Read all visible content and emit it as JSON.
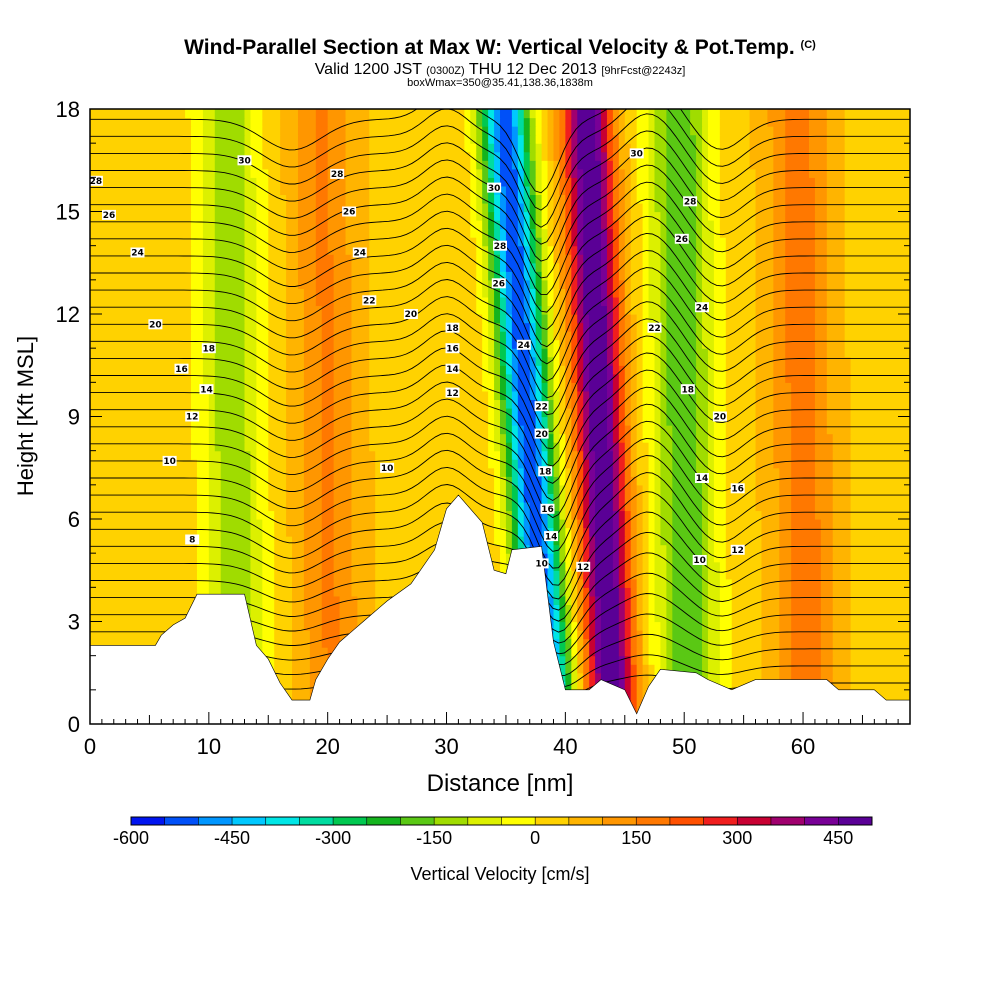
{
  "title": {
    "main": "Wind-Parallel Section at Max W: Vertical Velocity & Pot.Temp.",
    "copyright": "(C)",
    "valid_a": "Valid 1200 JST",
    "valid_z": "(0300Z)",
    "valid_b": "THU 12 Dec 2013",
    "forecast": "[9hrFcst@2243z]",
    "box": "boxWmax=350@35.41,138.36,1838m"
  },
  "chart_data": {
    "type": "heatmap",
    "xlabel": "Distance [nm]",
    "ylabel": "Height [Kft MSL]",
    "xlim": [
      0,
      69
    ],
    "ylim": [
      0,
      18
    ],
    "x_ticks": [
      "0",
      "10",
      "20",
      "30",
      "40",
      "50",
      "60"
    ],
    "y_ticks": [
      "0",
      "3",
      "6",
      "9",
      "12",
      "15",
      "18"
    ],
    "colorbar": {
      "label": "Vertical Velocity [cm/s]",
      "tick_labels": [
        "-600",
        "-450",
        "-300",
        "-150",
        "0",
        "150",
        "300",
        "450"
      ],
      "levels": [
        -600,
        -550,
        -500,
        -450,
        -400,
        -350,
        -300,
        -250,
        -200,
        -150,
        -100,
        -50,
        0,
        50,
        100,
        150,
        200,
        250,
        300,
        350,
        400,
        450,
        500
      ],
      "colors": [
        "#0014f0",
        "#0050f8",
        "#0096ff",
        "#00c8ff",
        "#00e6e6",
        "#00dca0",
        "#00c850",
        "#14b41e",
        "#5ac814",
        "#a0dc00",
        "#dcf000",
        "#ffff00",
        "#ffd200",
        "#ffb400",
        "#ff9600",
        "#ff7800",
        "#ff5000",
        "#f01e1e",
        "#c80032",
        "#a0006e",
        "#780096",
        "#5a0096"
      ]
    },
    "updraft_bands": [
      {
        "center_x": 20,
        "peak_w": 120
      },
      {
        "center_x": 43,
        "peak_w": 480
      },
      {
        "center_x": 60,
        "peak_w": 140
      }
    ],
    "downdraft_bands": [
      {
        "center_x": 12,
        "peak_w": -170
      },
      {
        "center_x": 37,
        "peak_w": -580
      },
      {
        "center_x": 50,
        "peak_w": -230
      }
    ],
    "terrain_kft": [
      [
        0,
        2.3
      ],
      [
        5.5,
        2.3
      ],
      [
        6,
        2.6
      ],
      [
        7,
        2.9
      ],
      [
        8,
        3.1
      ],
      [
        9,
        3.8
      ],
      [
        13,
        3.8
      ],
      [
        14,
        2.3
      ],
      [
        15,
        1.9
      ],
      [
        16,
        1.2
      ],
      [
        17,
        0.7
      ],
      [
        18.5,
        0.7
      ],
      [
        19,
        1.3
      ],
      [
        20,
        1.9
      ],
      [
        21,
        2.4
      ],
      [
        22,
        2.7
      ],
      [
        23,
        3.0
      ],
      [
        25,
        3.6
      ],
      [
        27,
        4.1
      ],
      [
        29,
        5.1
      ],
      [
        30,
        6.3
      ],
      [
        31,
        6.7
      ],
      [
        33,
        5.9
      ],
      [
        34,
        4.5
      ],
      [
        35,
        4.4
      ],
      [
        35.5,
        5.1
      ],
      [
        38,
        5.2
      ],
      [
        38.5,
        3.8
      ],
      [
        39,
        2.4
      ],
      [
        40,
        1.0
      ],
      [
        42,
        1.0
      ],
      [
        43,
        1.3
      ],
      [
        45,
        1.0
      ],
      [
        46,
        0.3
      ],
      [
        47,
        1.1
      ],
      [
        48,
        1.6
      ],
      [
        51,
        1.5
      ],
      [
        52,
        1.3
      ],
      [
        54,
        1.0
      ],
      [
        56,
        1.3
      ],
      [
        62,
        1.3
      ],
      [
        63,
        1.0
      ],
      [
        66,
        1.0
      ],
      [
        67,
        0.7
      ],
      [
        69,
        0.7
      ]
    ],
    "theta_contour_labels": [
      {
        "text": "30",
        "x": 13,
        "y": 16.5
      },
      {
        "text": "28",
        "x": 0.5,
        "y": 15.9
      },
      {
        "text": "26",
        "x": 1.6,
        "y": 14.9
      },
      {
        "text": "24",
        "x": 4.0,
        "y": 13.8
      },
      {
        "text": "20",
        "x": 5.5,
        "y": 11.7
      },
      {
        "text": "18",
        "x": 10.0,
        "y": 11.0
      },
      {
        "text": "16",
        "x": 7.7,
        "y": 10.4
      },
      {
        "text": "14",
        "x": 9.8,
        "y": 9.8
      },
      {
        "text": "12",
        "x": 8.6,
        "y": 9.0
      },
      {
        "text": "10",
        "x": 6.7,
        "y": 7.7
      },
      {
        "text": "8",
        "x": 8.6,
        "y": 5.4
      },
      {
        "text": "28",
        "x": 20.8,
        "y": 16.1
      },
      {
        "text": "26",
        "x": 21.8,
        "y": 15.0
      },
      {
        "text": "24",
        "x": 22.7,
        "y": 13.8
      },
      {
        "text": "22",
        "x": 23.5,
        "y": 12.4
      },
      {
        "text": "20",
        "x": 27.0,
        "y": 12.0
      },
      {
        "text": "18",
        "x": 30.5,
        "y": 11.6
      },
      {
        "text": "16",
        "x": 30.5,
        "y": 11.0
      },
      {
        "text": "14",
        "x": 30.5,
        "y": 10.4
      },
      {
        "text": "12",
        "x": 30.5,
        "y": 9.7
      },
      {
        "text": "10",
        "x": 25.0,
        "y": 7.5
      },
      {
        "text": "30",
        "x": 34.0,
        "y": 15.7
      },
      {
        "text": "28",
        "x": 34.5,
        "y": 14.0
      },
      {
        "text": "26",
        "x": 34.4,
        "y": 12.9
      },
      {
        "text": "24",
        "x": 36.5,
        "y": 11.1
      },
      {
        "text": "22",
        "x": 38.0,
        "y": 9.3
      },
      {
        "text": "20",
        "x": 38.0,
        "y": 8.5
      },
      {
        "text": "18",
        "x": 38.3,
        "y": 7.4
      },
      {
        "text": "16",
        "x": 38.5,
        "y": 6.3
      },
      {
        "text": "14",
        "x": 38.8,
        "y": 5.5
      },
      {
        "text": "10",
        "x": 38.0,
        "y": 4.7
      },
      {
        "text": "12",
        "x": 41.5,
        "y": 4.6
      },
      {
        "text": "30",
        "x": 46.0,
        "y": 16.7
      },
      {
        "text": "28",
        "x": 50.5,
        "y": 15.3
      },
      {
        "text": "26",
        "x": 49.8,
        "y": 14.2
      },
      {
        "text": "24",
        "x": 51.5,
        "y": 12.2
      },
      {
        "text": "22",
        "x": 47.5,
        "y": 11.6
      },
      {
        "text": "18",
        "x": 50.3,
        "y": 9.8
      },
      {
        "text": "20",
        "x": 53.0,
        "y": 9.0
      },
      {
        "text": "14",
        "x": 51.5,
        "y": 7.2
      },
      {
        "text": "16",
        "x": 54.5,
        "y": 6.9
      },
      {
        "text": "12",
        "x": 54.5,
        "y": 5.1
      },
      {
        "text": "10",
        "x": 51.3,
        "y": 4.8
      }
    ]
  }
}
